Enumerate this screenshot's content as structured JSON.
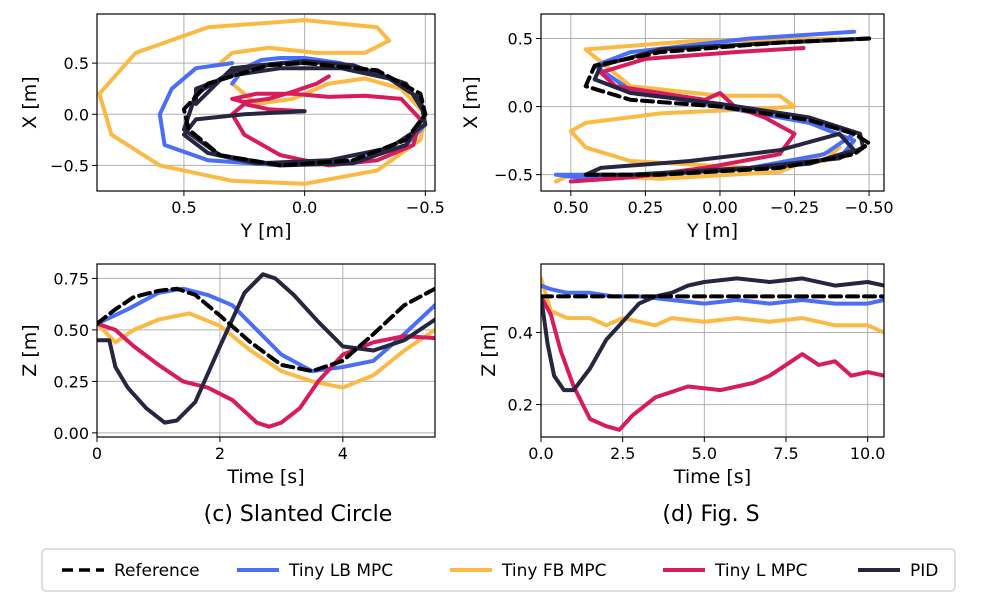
{
  "colors": {
    "reference": "#000000",
    "lb": "#4a6ef5",
    "fb": "#fbb946",
    "l": "#d81b5c",
    "pid": "#262640"
  },
  "captions": {
    "left": "(c) Slanted Circle",
    "right": "(d) Fig. S"
  },
  "legend": [
    {
      "label": "Reference",
      "color": "#000000",
      "dash": true
    },
    {
      "label": "Tiny LB MPC",
      "color": "#4a6ef5",
      "dash": false
    },
    {
      "label": "Tiny FB MPC",
      "color": "#fbb946",
      "dash": false
    },
    {
      "label": "Tiny L MPC",
      "color": "#d81b5c",
      "dash": false
    },
    {
      "label": "PID",
      "color": "#262640",
      "dash": false
    }
  ],
  "chart_data": [
    {
      "id": "xy_circle",
      "type": "line",
      "xlabel": "Y [m]",
      "ylabel": "X [m]",
      "xlim": [
        0.86,
        -0.54
      ],
      "ylim": [
        -0.75,
        0.98
      ],
      "xticks": [
        0.5,
        0.0,
        -0.5
      ],
      "xtick_labels": [
        "0.5",
        "0.0",
        "−0.5"
      ],
      "yticks": [
        0.5,
        0.0,
        -0.5
      ],
      "ytick_labels": [
        "0.5",
        "0.0",
        "−0.5"
      ],
      "series": [
        {
          "name": "Reference",
          "key": "reference",
          "dash": true,
          "x": [
            0,
            -0.3,
            -0.48,
            -0.5,
            -0.42,
            -0.2,
            0.1,
            0.35,
            0.48,
            0.5,
            0.4,
            0.15,
            0
          ],
          "y": [
            0.5,
            0.43,
            0.2,
            0,
            -0.25,
            -0.45,
            -0.5,
            -0.4,
            -0.15,
            0.05,
            0.3,
            0.48,
            0.5
          ]
        },
        {
          "name": "Tiny LB MPC",
          "key": "lb",
          "x": [
            0.3,
            0.25,
            0.18,
            0.1,
            0.0,
            -0.15,
            -0.35,
            -0.48,
            -0.5,
            -0.42,
            -0.2,
            0.1,
            0.4,
            0.58,
            0.6,
            0.55,
            0.45,
            0.3
          ],
          "y": [
            0.3,
            0.45,
            0.53,
            0.55,
            0.55,
            0.5,
            0.35,
            0.15,
            -0.1,
            -0.3,
            -0.46,
            -0.5,
            -0.45,
            -0.3,
            0.0,
            0.25,
            0.45,
            0.5
          ]
        },
        {
          "name": "Tiny FB MPC",
          "key": "fb",
          "x": [
            0.3,
            0.2,
            0.05,
            -0.1,
            -0.25,
            -0.4,
            -0.5,
            -0.48,
            -0.3,
            0.0,
            0.3,
            0.6,
            0.8,
            0.85,
            0.7,
            0.4,
            0.0,
            -0.3,
            -0.35,
            -0.25,
            -0.05,
            0.15,
            0.3,
            0.35
          ],
          "y": [
            0.3,
            0.1,
            0.15,
            0.3,
            0.35,
            0.25,
            0.0,
            -0.25,
            -0.55,
            -0.68,
            -0.65,
            -0.5,
            -0.2,
            0.2,
            0.6,
            0.85,
            0.92,
            0.85,
            0.72,
            0.6,
            0.6,
            0.65,
            0.6,
            0.5
          ]
        },
        {
          "name": "Tiny L MPC",
          "key": "l",
          "x": [
            0.0,
            0.15,
            0.25,
            0.3,
            0.25,
            0.1,
            -0.1,
            -0.3,
            -0.45,
            -0.48,
            -0.4,
            -0.25,
            -0.1,
            0.05,
            0.2,
            0.3,
            0.25,
            0.15,
            0.05,
            -0.05,
            -0.1
          ],
          "y": [
            0.03,
            0.05,
            0.1,
            0.0,
            -0.2,
            -0.4,
            -0.5,
            -0.45,
            -0.3,
            -0.05,
            0.15,
            0.18,
            0.17,
            0.2,
            0.2,
            0.15,
            0.12,
            0.15,
            0.22,
            0.3,
            0.37
          ]
        },
        {
          "name": "PID",
          "key": "pid",
          "x": [
            0.0,
            0.25,
            0.45,
            0.5,
            0.4,
            0.2,
            -0.1,
            -0.35,
            -0.5,
            -0.48,
            -0.35,
            -0.15,
            0.1,
            0.3,
            0.45,
            0.45,
            0.3,
            0.1,
            0.0,
            -0.2,
            -0.42,
            -0.5,
            -0.42,
            -0.2,
            0.1,
            0.35,
            0.5,
            0.45,
            0.3,
            0.1,
            -0.05
          ],
          "y": [
            0.03,
            0.0,
            -0.05,
            -0.2,
            -0.38,
            -0.48,
            -0.45,
            -0.33,
            -0.1,
            0.15,
            0.35,
            0.45,
            0.45,
            0.38,
            0.25,
            0.1,
            0.45,
            0.5,
            0.52,
            0.48,
            0.3,
            0.0,
            -0.3,
            -0.48,
            -0.5,
            -0.4,
            -0.15,
            0.2,
            0.42,
            0.5,
            0.5
          ]
        }
      ]
    },
    {
      "id": "xy_s",
      "type": "line",
      "xlabel": "Y [m]",
      "ylabel": "X [m]",
      "xlim": [
        0.6,
        -0.55
      ],
      "ylim": [
        -0.62,
        0.68
      ],
      "xticks": [
        0.5,
        0.25,
        0.0,
        -0.25,
        -0.5
      ],
      "xtick_labels": [
        "0.50",
        "0.25",
        "0.00",
        "−0.25",
        "−0.50"
      ],
      "yticks": [
        0.5,
        0.0,
        -0.5
      ],
      "yticks_labels_note": "labels",
      "ytick_labels": [
        "0.5",
        "0.0",
        "−0.5"
      ],
      "series": [
        {
          "name": "Reference",
          "key": "reference",
          "dash": true,
          "x": [
            -0.5,
            -0.2,
            0.2,
            0.42,
            0.45,
            0.3,
            0.0,
            -0.3,
            -0.45,
            -0.5,
            -0.45,
            -0.2,
            0.2,
            0.45
          ],
          "y": [
            0.5,
            0.47,
            0.4,
            0.3,
            0.15,
            0.05,
            0.0,
            -0.1,
            -0.2,
            -0.27,
            -0.35,
            -0.45,
            -0.5,
            -0.5
          ]
        },
        {
          "name": "Tiny LB MPC",
          "key": "lb",
          "x": [
            -0.45,
            -0.1,
            0.3,
            0.42,
            0.3,
            0.0,
            -0.3,
            -0.45,
            -0.4,
            -0.1,
            0.3,
            0.55,
            0.45,
            0.2,
            -0.1,
            -0.35,
            -0.45,
            -0.3
          ],
          "y": [
            0.55,
            0.5,
            0.4,
            0.3,
            0.12,
            0.0,
            -0.12,
            -0.25,
            -0.38,
            -0.45,
            -0.5,
            -0.5,
            -0.53,
            -0.5,
            -0.45,
            -0.35,
            -0.2,
            -0.1
          ]
        },
        {
          "name": "Tiny FB MPC",
          "key": "fb",
          "x": [
            -0.4,
            0.1,
            0.45,
            0.3,
            0.0,
            -0.2,
            -0.25,
            -0.1,
            0.2,
            0.45,
            0.5,
            0.45,
            0.3,
            -0.1,
            -0.35,
            -0.4,
            -0.2,
            0.2,
            0.5,
            0.55
          ],
          "y": [
            0.5,
            0.48,
            0.42,
            0.15,
            0.08,
            0.08,
            0.0,
            -0.02,
            -0.05,
            -0.12,
            -0.18,
            -0.3,
            -0.4,
            -0.45,
            -0.4,
            -0.3,
            -0.48,
            -0.53,
            -0.5,
            -0.55
          ]
        },
        {
          "name": "Tiny L MPC",
          "key": "l",
          "x": [
            -0.28,
            -0.05,
            0.25,
            0.4,
            0.35,
            0.05,
            0.0,
            -0.05,
            -0.15,
            -0.25,
            -0.2,
            0.05,
            0.3,
            0.5
          ],
          "y": [
            0.43,
            0.4,
            0.35,
            0.25,
            0.15,
            0.05,
            0.1,
            0.0,
            -0.08,
            -0.2,
            -0.35,
            -0.45,
            -0.52,
            -0.55
          ]
        },
        {
          "name": "PID",
          "key": "pid",
          "x": [
            -0.5,
            -0.2,
            0.2,
            0.4,
            0.42,
            0.3,
            0.0,
            -0.3,
            -0.47,
            -0.48,
            -0.4,
            -0.1,
            0.3,
            0.45,
            0.4,
            0.1,
            -0.2,
            -0.4,
            -0.45,
            -0.3,
            0.0,
            0.3
          ],
          "y": [
            0.5,
            0.47,
            0.42,
            0.3,
            0.2,
            0.1,
            0.02,
            -0.08,
            -0.2,
            -0.3,
            -0.38,
            -0.45,
            -0.5,
            -0.5,
            -0.45,
            -0.4,
            -0.32,
            -0.2,
            -0.32,
            -0.42,
            -0.47,
            -0.5
          ]
        }
      ]
    },
    {
      "id": "z_circle",
      "type": "line",
      "xlabel": "Time [s]",
      "ylabel": "Z [m]",
      "xlim": [
        0,
        5.5
      ],
      "ylim": [
        -0.02,
        0.82
      ],
      "xticks": [
        0,
        2,
        4
      ],
      "xtick_labels": [
        "0",
        "2",
        "4"
      ],
      "yticks": [
        0.0,
        0.25,
        0.5,
        0.75
      ],
      "ytick_labels": [
        "0.00",
        "0.25",
        "0.50",
        "0.75"
      ],
      "series": [
        {
          "name": "Reference",
          "key": "reference",
          "dash": true,
          "x": [
            0,
            0.3,
            0.6,
            1.0,
            1.3,
            1.6,
            2.0,
            2.5,
            3.0,
            3.5,
            4.0,
            4.5,
            5.0,
            5.5
          ],
          "y": [
            0.53,
            0.6,
            0.66,
            0.69,
            0.7,
            0.67,
            0.57,
            0.44,
            0.33,
            0.3,
            0.35,
            0.48,
            0.62,
            0.7
          ]
        },
        {
          "name": "Tiny LB MPC",
          "key": "lb",
          "x": [
            0,
            0.5,
            1.0,
            1.4,
            1.8,
            2.2,
            2.6,
            3.0,
            3.5,
            4.0,
            4.5,
            5.0,
            5.5
          ],
          "y": [
            0.53,
            0.6,
            0.68,
            0.7,
            0.67,
            0.62,
            0.5,
            0.38,
            0.3,
            0.32,
            0.35,
            0.48,
            0.62
          ]
        },
        {
          "name": "Tiny FB MPC",
          "key": "fb",
          "x": [
            0,
            0.3,
            0.6,
            1.0,
            1.5,
            2.0,
            2.5,
            3.0,
            3.5,
            4.0,
            4.5,
            5.0,
            5.5
          ],
          "y": [
            0.53,
            0.44,
            0.5,
            0.55,
            0.58,
            0.52,
            0.4,
            0.3,
            0.25,
            0.22,
            0.28,
            0.4,
            0.5
          ]
        },
        {
          "name": "Tiny L MPC",
          "key": "l",
          "x": [
            0,
            0.3,
            0.6,
            1.0,
            1.4,
            1.8,
            2.2,
            2.6,
            2.8,
            3.0,
            3.3,
            3.6,
            4.0,
            4.5,
            5.0,
            5.5
          ],
          "y": [
            0.53,
            0.5,
            0.42,
            0.33,
            0.25,
            0.22,
            0.16,
            0.05,
            0.03,
            0.05,
            0.12,
            0.25,
            0.38,
            0.44,
            0.47,
            0.46
          ]
        },
        {
          "name": "PID",
          "key": "pid",
          "x": [
            0,
            0.2,
            0.3,
            0.5,
            0.8,
            1.1,
            1.3,
            1.6,
            2.0,
            2.4,
            2.7,
            2.9,
            3.2,
            3.6,
            4.0,
            4.5,
            5.0,
            5.5
          ],
          "y": [
            0.45,
            0.45,
            0.32,
            0.22,
            0.12,
            0.05,
            0.06,
            0.15,
            0.42,
            0.68,
            0.77,
            0.75,
            0.67,
            0.54,
            0.42,
            0.4,
            0.45,
            0.55
          ]
        }
      ]
    },
    {
      "id": "z_s",
      "type": "line",
      "xlabel": "Time [s]",
      "ylabel": "Z [m]",
      "xlim": [
        0,
        10.5
      ],
      "ylim": [
        0.11,
        0.59
      ],
      "xticks": [
        0,
        2.5,
        5.0,
        7.5,
        10.0
      ],
      "xtick_labels": [
        "0.0",
        "2.5",
        "5.0",
        "7.5",
        "10.0"
      ],
      "yticks": [
        0.2,
        0.4
      ],
      "ytick_labels": [
        "0.2",
        "0.4"
      ],
      "series": [
        {
          "name": "Reference",
          "key": "reference",
          "dash": true,
          "x": [
            0,
            10.5
          ],
          "y": [
            0.5,
            0.5
          ]
        },
        {
          "name": "Tiny LB MPC",
          "key": "lb",
          "x": [
            0,
            0.3,
            0.8,
            1.5,
            2.2,
            3.0,
            4.0,
            5.0,
            6.0,
            7.0,
            8.0,
            9.0,
            10.0,
            10.5
          ],
          "y": [
            0.53,
            0.52,
            0.51,
            0.51,
            0.5,
            0.5,
            0.49,
            0.48,
            0.49,
            0.48,
            0.49,
            0.48,
            0.48,
            0.49
          ]
        },
        {
          "name": "Tiny FB MPC",
          "key": "fb",
          "x": [
            0,
            0.3,
            0.8,
            1.5,
            2.0,
            2.5,
            3.0,
            3.5,
            4.0,
            5.0,
            6.0,
            7.0,
            8.0,
            9.0,
            10.0,
            10.5
          ],
          "y": [
            0.55,
            0.46,
            0.44,
            0.44,
            0.42,
            0.44,
            0.43,
            0.42,
            0.44,
            0.43,
            0.44,
            0.43,
            0.44,
            0.42,
            0.42,
            0.4
          ]
        },
        {
          "name": "Tiny L MPC",
          "key": "l",
          "x": [
            0,
            0.3,
            0.6,
            1.0,
            1.5,
            2.0,
            2.4,
            2.8,
            3.5,
            4.5,
            5.5,
            6.5,
            7.0,
            7.5,
            8.0,
            8.5,
            9.0,
            9.5,
            10.0,
            10.5
          ],
          "y": [
            0.5,
            0.45,
            0.35,
            0.25,
            0.16,
            0.14,
            0.13,
            0.17,
            0.22,
            0.25,
            0.24,
            0.26,
            0.28,
            0.31,
            0.34,
            0.31,
            0.32,
            0.28,
            0.29,
            0.28
          ]
        },
        {
          "name": "PID",
          "key": "pid",
          "x": [
            0,
            0.2,
            0.4,
            0.7,
            1.0,
            1.5,
            2.0,
            2.5,
            3.0,
            3.5,
            4.0,
            4.5,
            5.0,
            6.0,
            7.0,
            8.0,
            9.0,
            10.0,
            10.5
          ],
          "y": [
            0.5,
            0.37,
            0.28,
            0.24,
            0.24,
            0.3,
            0.38,
            0.43,
            0.48,
            0.5,
            0.51,
            0.53,
            0.54,
            0.55,
            0.54,
            0.55,
            0.53,
            0.54,
            0.53
          ]
        }
      ]
    }
  ]
}
